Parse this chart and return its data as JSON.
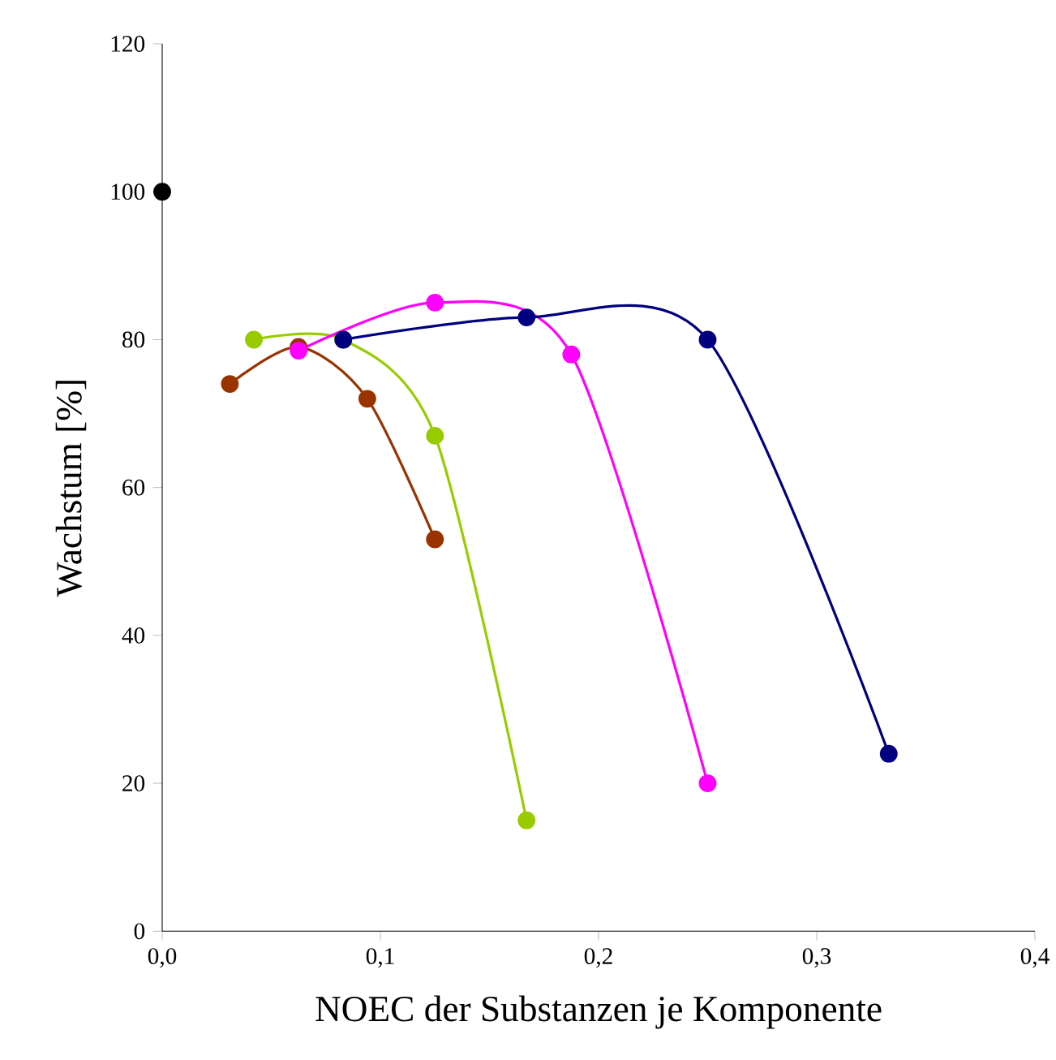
{
  "chart_data": {
    "type": "line",
    "xlabel": "NOEC der Substanzen je Komponente",
    "ylabel": "Wachstum [%]",
    "xlim": [
      0,
      0.4
    ],
    "ylim": [
      0,
      120
    ],
    "xticks": [
      {
        "value": 0,
        "label": "0,0"
      },
      {
        "value": 0.1,
        "label": "0,1"
      },
      {
        "value": 0.2,
        "label": "0,2"
      },
      {
        "value": 0.3,
        "label": "0,3"
      },
      {
        "value": 0.4,
        "label": "0,4"
      }
    ],
    "yticks": [
      0,
      20,
      40,
      60,
      80,
      100,
      120
    ],
    "marker": "circle",
    "line_style": "solid",
    "series": [
      {
        "color": "#000000",
        "x": [
          0
        ],
        "values": [
          100
        ]
      },
      {
        "color": "#993300",
        "x": [
          0.031,
          0.0625,
          0.094,
          0.125
        ],
        "values": [
          74,
          79,
          72,
          53
        ]
      },
      {
        "color": "#99cc00",
        "x": [
          0.042,
          0.083,
          0.125,
          0.167
        ],
        "values": [
          80,
          80,
          67,
          15
        ]
      },
      {
        "color": "#ff00ff",
        "x": [
          0.0625,
          0.125,
          0.1875,
          0.25
        ],
        "values": [
          78.5,
          85,
          78,
          20
        ]
      },
      {
        "color": "#000080",
        "x": [
          0.083,
          0.167,
          0.25,
          0.333
        ],
        "values": [
          80,
          83,
          80,
          24
        ]
      }
    ]
  }
}
